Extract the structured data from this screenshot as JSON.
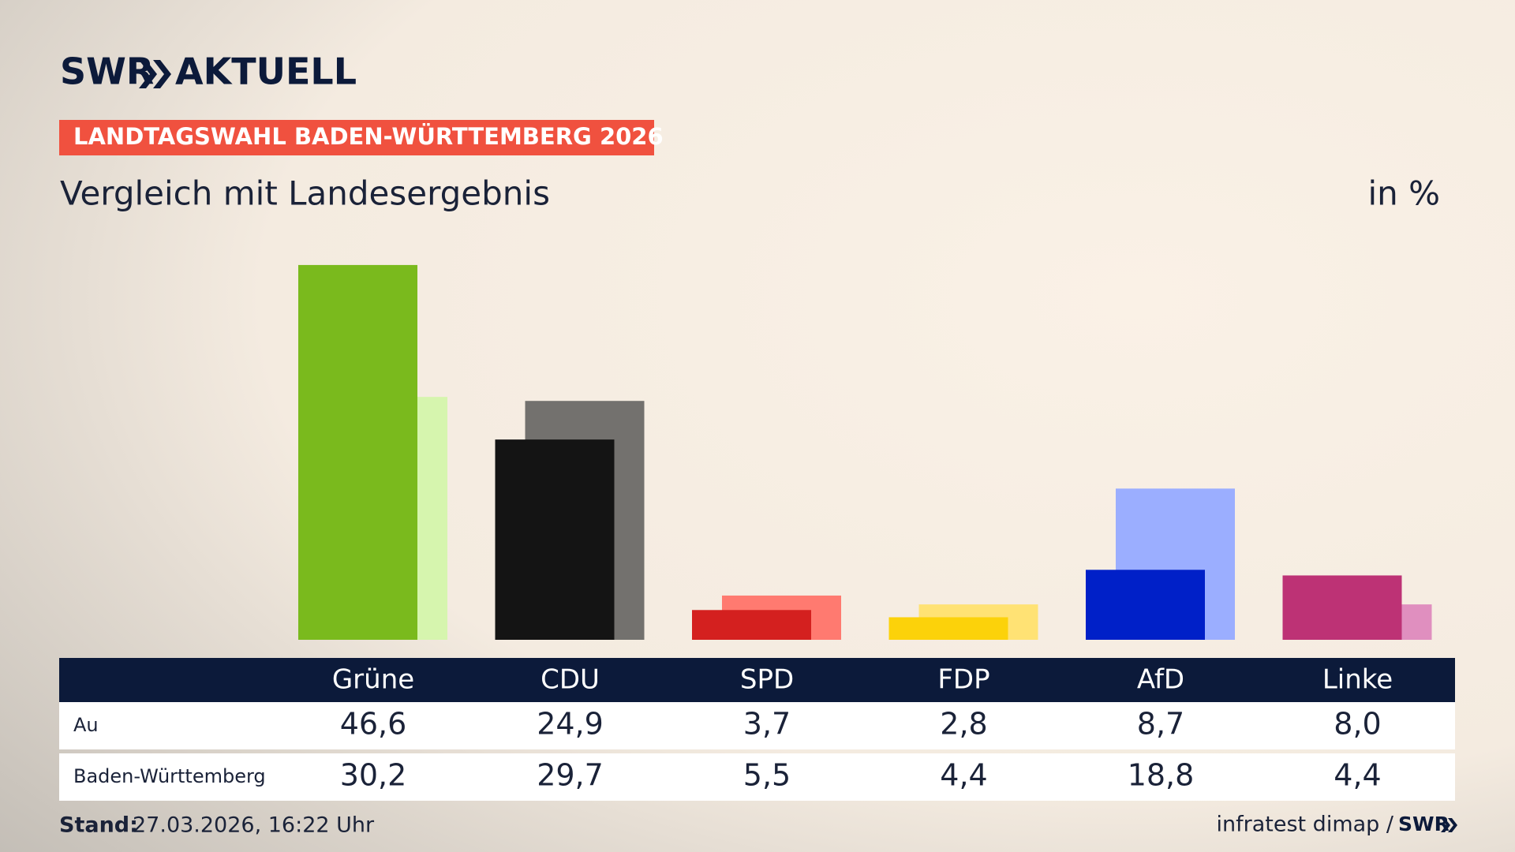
{
  "header": {
    "logo": "SWR",
    "logo_suffix": "AKTUELL",
    "banner": "LANDTAGSWAHL BADEN-WÜRTTEMBERG 2026"
  },
  "chart_data": {
    "type": "bar",
    "title": "Vergleich mit Landesergebnis",
    "unit": "in %",
    "categories": [
      "Grüne",
      "CDU",
      "SPD",
      "FDP",
      "AfD",
      "Linke"
    ],
    "series": [
      {
        "name": "Au",
        "colors": [
          "#7aba1d",
          "#141414",
          "#d4201f",
          "#fcd20a",
          "#0020c8",
          "#bd3275"
        ],
        "values": [
          46.6,
          24.9,
          3.7,
          2.8,
          8.7,
          8.0
        ],
        "value_labels": [
          "46,6",
          "24,9",
          "3,7",
          "2,8",
          "8,7",
          "8,0"
        ]
      },
      {
        "name": "Baden-Württemberg",
        "colors": [
          "#d6f5ae",
          "#73716e",
          "#ff7a70",
          "#ffe274",
          "#9baeff",
          "#e08fbf"
        ],
        "values": [
          30.2,
          29.7,
          5.5,
          4.4,
          18.8,
          4.4
        ],
        "value_labels": [
          "30,2",
          "29,7",
          "5,5",
          "4,4",
          "18,8",
          "4,4"
        ]
      }
    ]
  },
  "footer": {
    "stand_label": "Stand:",
    "stand": "27.03.2026, 16:22 Uhr",
    "source": "infratest dimap /",
    "source_logo": "SWR"
  }
}
